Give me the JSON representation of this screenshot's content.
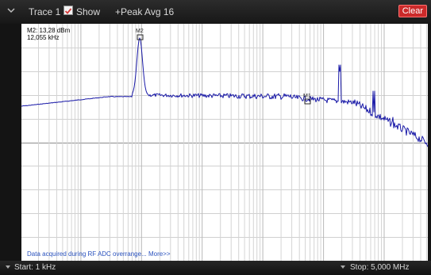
{
  "header": {
    "trace_label": "Trace 1",
    "show_label": "Show",
    "show_checked": true,
    "avg_label": "+Peak Avg 16",
    "clear_label": "Clear"
  },
  "plot": {
    "markers": [
      {
        "id": "m2",
        "label": "M2",
        "readout_line1": "M2: 13,28 dBm",
        "readout_line2": "12,055 kHz"
      },
      {
        "id": "m1",
        "label": "M1"
      }
    ],
    "warning_text": "Data acquired during RF ADC overrange... More>>",
    "trace_color": "#1a1aa8",
    "marker_color": "#2a2a2a"
  },
  "footer": {
    "start_label": "Start: 1 kHz",
    "stop_label": "Stop: 5,000 MHz"
  },
  "colors": {
    "clear_button": "#cc2a2a",
    "warning_text": "#2a52be"
  },
  "icons": {
    "collapse": "chevron-down-icon",
    "show": "checkbox-icon",
    "start": "start-arrow-icon",
    "stop": "stop-arrow-icon"
  }
}
